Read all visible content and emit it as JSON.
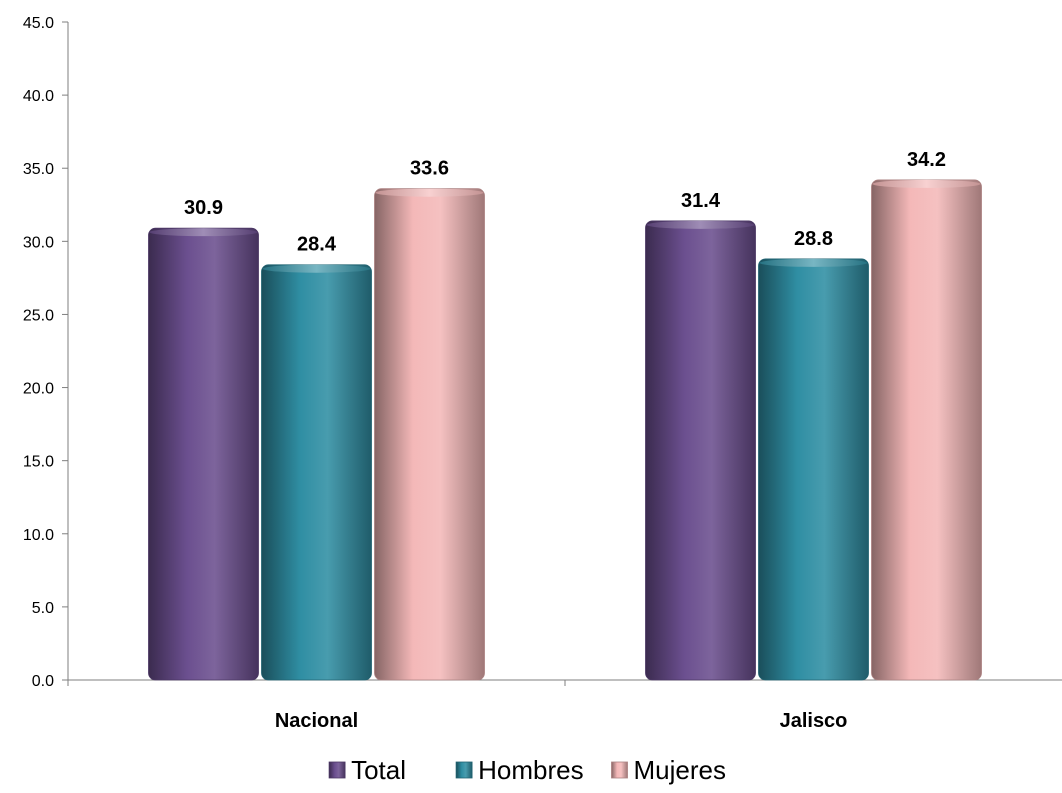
{
  "chart_data": {
    "type": "bar",
    "categories": [
      "Nacional",
      "Jalisco"
    ],
    "series": [
      {
        "name": "Total",
        "values": [
          30.9,
          31.4
        ],
        "color": "#6b4f8f"
      },
      {
        "name": "Hombres",
        "values": [
          28.4,
          28.8
        ],
        "color": "#2f8ea3"
      },
      {
        "name": "Mujeres",
        "values": [
          33.6,
          34.2
        ],
        "color": "#f4b8b8"
      }
    ],
    "ylim": [
      0,
      45
    ],
    "ytick_step": 5,
    "ytick_labels": [
      "0.0",
      "5.0",
      "10.0",
      "15.0",
      "20.0",
      "25.0",
      "30.0",
      "35.0",
      "40.0",
      "45.0"
    ],
    "data_labels": [
      [
        "30.9",
        "31.4"
      ],
      [
        "28.4",
        "28.8"
      ],
      [
        "33.6",
        "34.2"
      ]
    ],
    "grid": false,
    "legend_position": "bottom",
    "title": "",
    "xlabel": "",
    "ylabel": ""
  }
}
